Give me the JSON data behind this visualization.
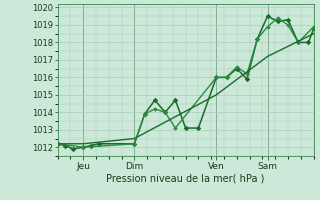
{
  "xlabel": "Pression niveau de la mer( hPa )",
  "ylim": [
    1011.5,
    1020.2
  ],
  "xlim": [
    0,
    100
  ],
  "yticks": [
    1012,
    1013,
    1014,
    1015,
    1016,
    1017,
    1018,
    1019,
    1020
  ],
  "bg_color": "#cce8d8",
  "grid_color": "#aacebb",
  "day_lines": [
    {
      "label": "Jeu",
      "x": 10
    },
    {
      "label": "Dim",
      "x": 30
    },
    {
      "label": "Ven",
      "x": 62
    },
    {
      "label": "Sam",
      "x": 82
    }
  ],
  "series": [
    {
      "x": [
        0,
        3,
        6,
        10,
        13,
        16,
        30,
        34,
        38,
        42,
        46,
        50,
        55,
        62,
        66,
        70,
        74,
        78,
        82,
        86,
        90,
        94,
        98,
        100
      ],
      "y": [
        1012.2,
        1012.1,
        1011.9,
        1012.0,
        1012.1,
        1012.2,
        1012.2,
        1013.9,
        1014.7,
        1014.0,
        1014.7,
        1013.1,
        1013.1,
        1016.0,
        1016.0,
        1016.5,
        1015.9,
        1018.2,
        1019.5,
        1019.2,
        1019.3,
        1018.0,
        1018.0,
        1018.8
      ],
      "color": "#1a6b2a",
      "lw": 1.1,
      "ms": 2.8
    },
    {
      "x": [
        0,
        10,
        30,
        34,
        38,
        42,
        46,
        62,
        66,
        70,
        74,
        78,
        82,
        86,
        90,
        94,
        100
      ],
      "y": [
        1012.2,
        1012.0,
        1012.2,
        1013.9,
        1014.2,
        1014.0,
        1013.1,
        1016.0,
        1016.0,
        1016.6,
        1016.2,
        1018.2,
        1018.9,
        1019.4,
        1019.0,
        1018.0,
        1018.9
      ],
      "color": "#2d8a3e",
      "lw": 1.0,
      "ms": 2.3
    },
    {
      "x": [
        0,
        10,
        30,
        62,
        82,
        100
      ],
      "y": [
        1012.2,
        1012.2,
        1012.5,
        1015.0,
        1017.2,
        1018.5
      ],
      "color": "#1a6b2a",
      "lw": 1.0,
      "ms": 0
    }
  ]
}
